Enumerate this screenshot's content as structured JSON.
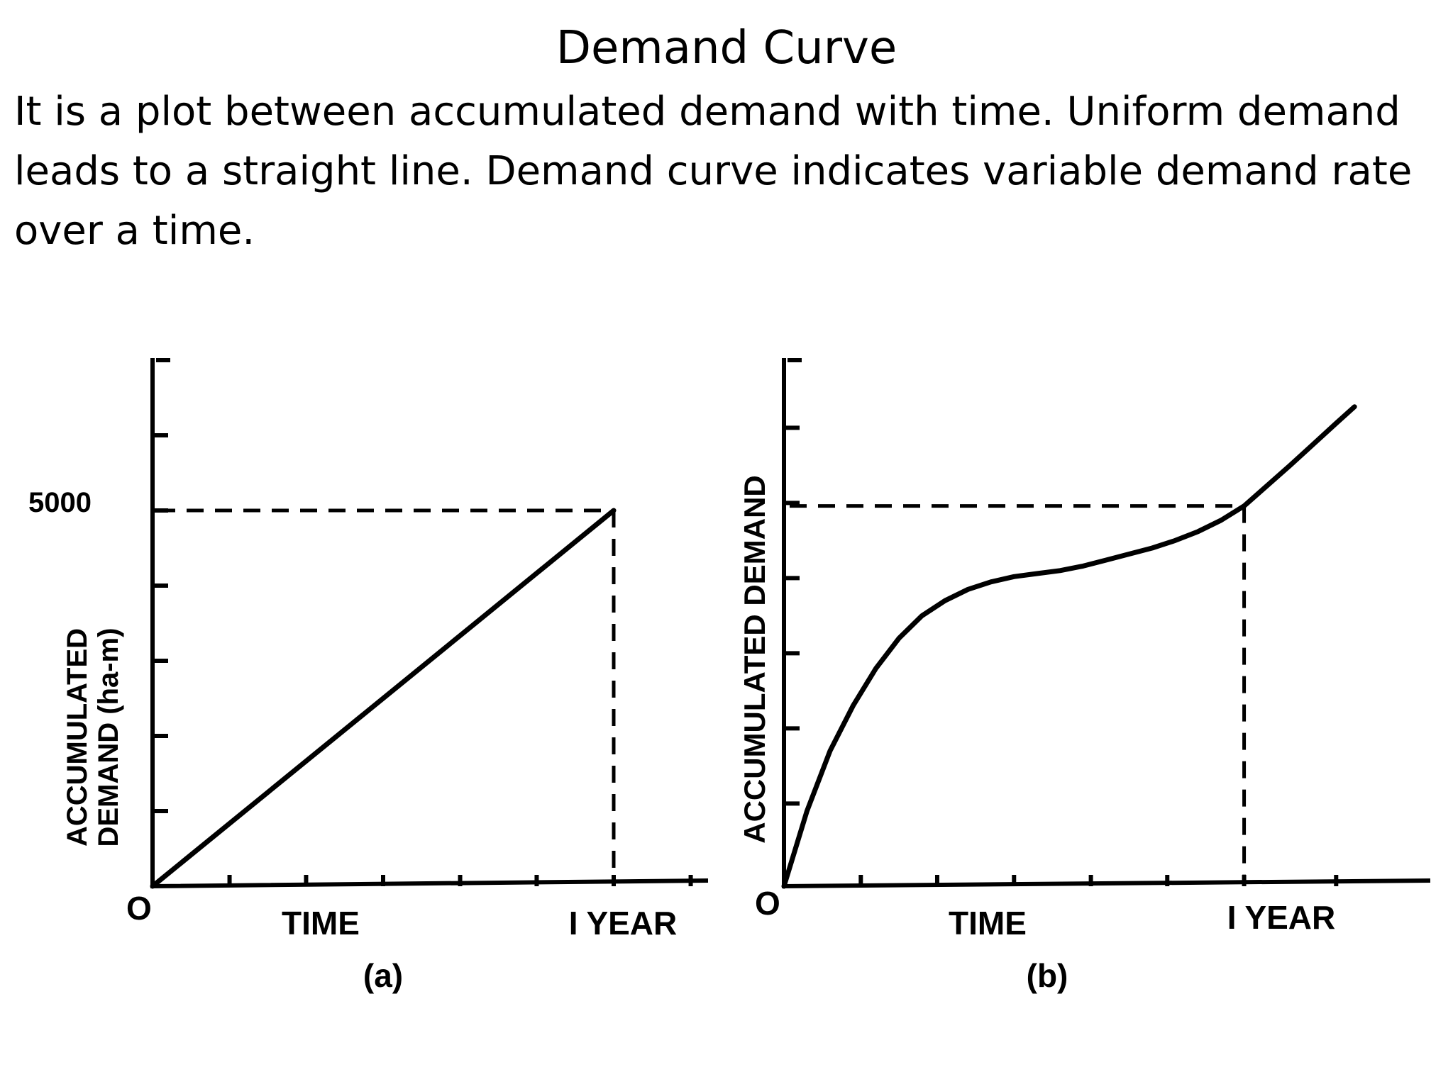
{
  "slide": {
    "title": "Demand Curve",
    "body": "It is a plot between accumulated demand with time. Uniform demand leads to a straight line. Demand curve indicates variable demand rate over a time."
  },
  "chart_data": [
    {
      "type": "line",
      "panel_label": "(a)",
      "xlabel": "TIME",
      "ylabel_line1": "ACCUMULATED",
      "ylabel_line2": "DEMAND (ha-m)",
      "x_tick_labels": {
        "origin": "O",
        "end": "I YEAR"
      },
      "y_tick_labels": {
        "top_value": "5000"
      },
      "xlim": [
        0,
        1.2
      ],
      "ylim": [
        0,
        7000
      ],
      "series": [
        {
          "x": [
            0,
            1
          ],
          "y": [
            0,
            5000
          ]
        }
      ],
      "reference_point": {
        "x": 1,
        "y": 5000
      },
      "y_ticks": [
        1000,
        2000,
        3000,
        4000,
        5000,
        6000
      ],
      "x_ticks": [
        0.167,
        0.333,
        0.5,
        0.667,
        0.833,
        1.0,
        1.167
      ]
    },
    {
      "type": "line",
      "panel_label": "(b)",
      "xlabel": "TIME",
      "ylabel_line1": "ACCUMULATED DEMAND",
      "x_tick_labels": {
        "origin": "O",
        "end": "I YEAR"
      },
      "xlim": [
        0,
        1.4
      ],
      "ylim": [
        0,
        7000
      ],
      "series": [
        {
          "x": [
            0,
            0.05,
            0.1,
            0.15,
            0.2,
            0.25,
            0.3,
            0.35,
            0.4,
            0.45,
            0.5,
            0.55,
            0.6,
            0.65,
            0.7,
            0.75,
            0.8,
            0.85,
            0.9,
            0.95,
            1.0,
            1.05,
            1.1,
            1.15,
            1.2,
            1.24
          ],
          "y": [
            0,
            1000,
            1800,
            2400,
            2900,
            3300,
            3600,
            3800,
            3950,
            4050,
            4120,
            4160,
            4200,
            4260,
            4340,
            4420,
            4500,
            4600,
            4720,
            4870,
            5060,
            5330,
            5600,
            5880,
            6160,
            6380
          ]
        }
      ],
      "reference_point": {
        "x": 1,
        "y": 5060
      },
      "y_ticks": [
        1100,
        2100,
        3100,
        4100,
        5100,
        6100
      ],
      "x_ticks": [
        0.167,
        0.333,
        0.5,
        0.667,
        0.833,
        1.0,
        1.2
      ]
    }
  ]
}
